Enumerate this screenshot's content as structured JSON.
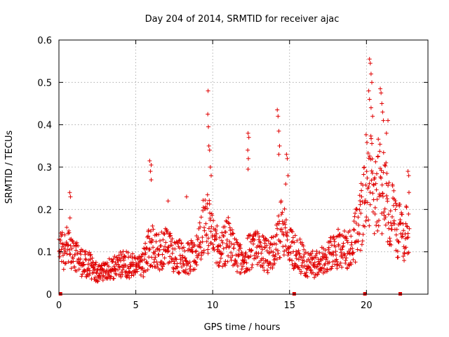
{
  "chart_data": {
    "type": "scatter",
    "title": "Day 204 of 2014, SRMTID for receiver ajac",
    "xlabel": "GPS time / hours",
    "ylabel": "SRMTID / TECUs",
    "xlim": [
      0,
      24
    ],
    "ylim": [
      0,
      0.6
    ],
    "x_ticks": [
      "0",
      "5",
      "10",
      "15",
      "20"
    ],
    "y_ticks": [
      "0",
      "0.1",
      "0.2",
      "0.3",
      "0.4",
      "0.5",
      "0.6"
    ],
    "x_tick_values": [
      0,
      5,
      10,
      15,
      20
    ],
    "y_tick_values": [
      0,
      0.1,
      0.2,
      0.3,
      0.4,
      0.5,
      0.6
    ],
    "grid": true,
    "marker": "+",
    "series": [
      {
        "name": "SRMTID",
        "color": "#e00000",
        "profile": [
          [
            0.0,
            0.1
          ],
          [
            0.5,
            0.11
          ],
          [
            1.0,
            0.09
          ],
          [
            1.5,
            0.075
          ],
          [
            2.0,
            0.07
          ],
          [
            2.5,
            0.05
          ],
          [
            3.0,
            0.055
          ],
          [
            3.5,
            0.06
          ],
          [
            4.0,
            0.07
          ],
          [
            4.5,
            0.07
          ],
          [
            5.0,
            0.065
          ],
          [
            5.5,
            0.075
          ],
          [
            6.0,
            0.12
          ],
          [
            6.5,
            0.1
          ],
          [
            7.0,
            0.11
          ],
          [
            7.5,
            0.09
          ],
          [
            8.0,
            0.09
          ],
          [
            8.5,
            0.085
          ],
          [
            9.0,
            0.1
          ],
          [
            9.5,
            0.17
          ],
          [
            10.0,
            0.15
          ],
          [
            10.5,
            0.11
          ],
          [
            11.0,
            0.13
          ],
          [
            11.5,
            0.09
          ],
          [
            12.0,
            0.08
          ],
          [
            12.5,
            0.11
          ],
          [
            13.0,
            0.1
          ],
          [
            13.5,
            0.09
          ],
          [
            14.0,
            0.1
          ],
          [
            14.5,
            0.16
          ],
          [
            15.0,
            0.11
          ],
          [
            15.5,
            0.1
          ],
          [
            16.0,
            0.075
          ],
          [
            16.5,
            0.07
          ],
          [
            17.0,
            0.075
          ],
          [
            17.5,
            0.085
          ],
          [
            18.0,
            0.11
          ],
          [
            18.5,
            0.1
          ],
          [
            19.0,
            0.12
          ],
          [
            19.5,
            0.15
          ],
          [
            20.0,
            0.27
          ],
          [
            20.5,
            0.25
          ],
          [
            21.0,
            0.26
          ],
          [
            21.5,
            0.2
          ],
          [
            22.0,
            0.15
          ],
          [
            22.5,
            0.14
          ],
          [
            22.8,
            0.17
          ]
        ],
        "spikes": [
          [
            0.7,
            0.24
          ],
          [
            0.75,
            0.23
          ],
          [
            0.72,
            0.18
          ],
          [
            5.9,
            0.315
          ],
          [
            6.0,
            0.305
          ],
          [
            5.95,
            0.29
          ],
          [
            6.0,
            0.27
          ],
          [
            7.1,
            0.22
          ],
          [
            8.3,
            0.23
          ],
          [
            9.7,
            0.48
          ],
          [
            9.68,
            0.425
          ],
          [
            9.72,
            0.395
          ],
          [
            9.75,
            0.35
          ],
          [
            9.8,
            0.34
          ],
          [
            9.85,
            0.3
          ],
          [
            9.9,
            0.28
          ],
          [
            12.3,
            0.38
          ],
          [
            12.35,
            0.37
          ],
          [
            12.28,
            0.34
          ],
          [
            12.32,
            0.32
          ],
          [
            12.3,
            0.295
          ],
          [
            14.2,
            0.435
          ],
          [
            14.25,
            0.42
          ],
          [
            14.3,
            0.385
          ],
          [
            14.35,
            0.35
          ],
          [
            14.3,
            0.33
          ],
          [
            14.8,
            0.33
          ],
          [
            14.85,
            0.32
          ],
          [
            14.9,
            0.28
          ],
          [
            14.75,
            0.26
          ],
          [
            20.2,
            0.555
          ],
          [
            20.25,
            0.545
          ],
          [
            20.3,
            0.52
          ],
          [
            20.35,
            0.5
          ],
          [
            20.15,
            0.48
          ],
          [
            20.2,
            0.46
          ],
          [
            20.3,
            0.44
          ],
          [
            20.4,
            0.42
          ],
          [
            20.9,
            0.485
          ],
          [
            20.95,
            0.475
          ],
          [
            21.0,
            0.45
          ],
          [
            21.05,
            0.43
          ],
          [
            21.1,
            0.41
          ],
          [
            21.4,
            0.41
          ],
          [
            21.3,
            0.38
          ],
          [
            22.7,
            0.29
          ],
          [
            22.75,
            0.28
          ]
        ]
      }
    ],
    "gap_markers_x": [
      0.1,
      15.3,
      19.9,
      22.2
    ]
  }
}
